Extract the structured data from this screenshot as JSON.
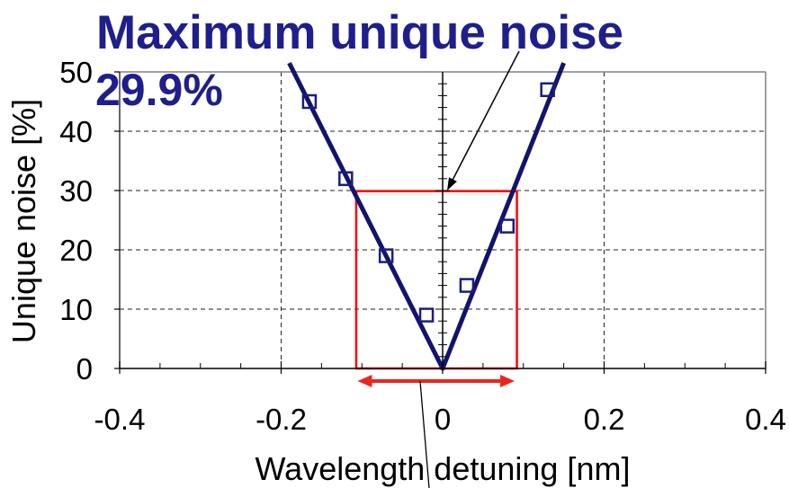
{
  "chart_data": {
    "type": "scatter",
    "xlabel": "Wavelength detuning [nm]",
    "ylabel": "Unique noise [%]",
    "xlim": [
      -0.4,
      0.4
    ],
    "ylim": [
      0,
      50
    ],
    "x_ticks": [
      {
        "value": -0.4,
        "label": "-0.4"
      },
      {
        "value": -0.2,
        "label": "-0.2"
      },
      {
        "value": 0,
        "label": "0"
      },
      {
        "value": 0.2,
        "label": "0.2"
      },
      {
        "value": 0.4,
        "label": "0.4"
      }
    ],
    "y_ticks": [
      {
        "value": 0,
        "label": "0"
      },
      {
        "value": 10,
        "label": "10"
      },
      {
        "value": 20,
        "label": "20"
      },
      {
        "value": 30,
        "label": "30"
      },
      {
        "value": 40,
        "label": "40"
      },
      {
        "value": 50,
        "label": "50"
      }
    ],
    "grid": true,
    "series": [
      {
        "type": "scatter",
        "color": "#1c1c80",
        "x": [
          -0.165,
          -0.12,
          -0.07,
          -0.02,
          0.03,
          0.08,
          0.13
        ],
        "y": [
          45,
          32,
          19,
          9,
          14,
          24,
          47
        ]
      },
      {
        "type": "line",
        "color": "#13136c",
        "x": [
          -0.19,
          0,
          0.15
        ],
        "y": [
          51.5,
          0,
          51.5
        ]
      }
    ],
    "highlight_box": {
      "color": "#ff0000",
      "x_range": [
        -0.107,
        0.092
      ],
      "y_range": [
        0,
        29.9
      ]
    },
    "range_arrow": {
      "color": "#e8261c",
      "x_range": [
        -0.107,
        0.092
      ]
    },
    "annotations": [
      {
        "text": "Maximum unique noise",
        "color": "#1e1e8c"
      },
      {
        "text": "29.9%",
        "color": "#1e1e8c"
      }
    ]
  }
}
